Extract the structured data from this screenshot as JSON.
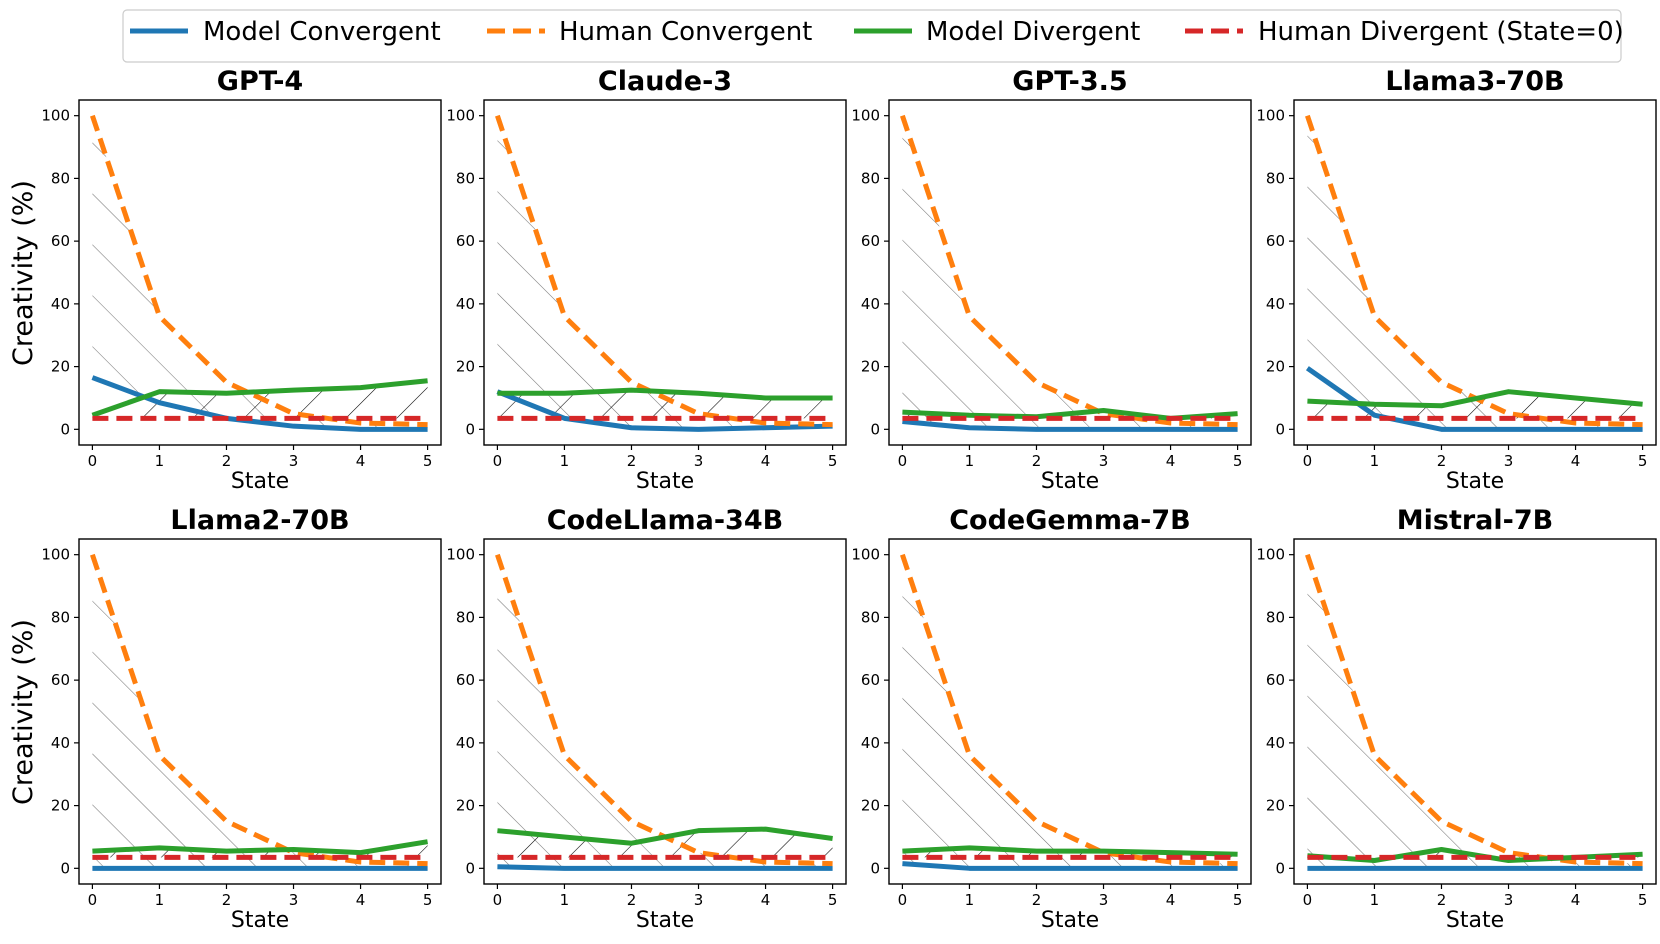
{
  "legend": {
    "entries": [
      {
        "label": "Model Convergent",
        "color": "#1f77b4",
        "dashed": false
      },
      {
        "label": "Human Convergent",
        "color": "#ff7f0e",
        "dashed": true
      },
      {
        "label": "Model Divergent",
        "color": "#2ca02c",
        "dashed": false
      },
      {
        "label": "Human Divergent (State=0)",
        "color": "#d62728",
        "dashed": true
      }
    ]
  },
  "ylabel": "Creativity (%)",
  "colors": {
    "model_convergent": "#1f77b4",
    "human_convergent": "#ff7f0e",
    "model_divergent": "#2ca02c",
    "human_divergent": "#d62728"
  },
  "chart_data": [
    {
      "type": "line",
      "title": "GPT-4",
      "xlabel": "State",
      "ylabel": "Creativity (%)",
      "x": [
        0,
        1,
        2,
        3,
        4,
        5
      ],
      "xlim": [
        -0.2,
        5.2
      ],
      "ylim": [
        -5,
        105
      ],
      "yticks": [
        0,
        20,
        40,
        60,
        80,
        100
      ],
      "grid": false,
      "legend": "top",
      "series": [
        {
          "name": "Model Convergent",
          "values": [
            16.5,
            8.5,
            3.5,
            1.0,
            0.0,
            0.0
          ]
        },
        {
          "name": "Human Convergent",
          "values": [
            100,
            36,
            15,
            5,
            2,
            1.5
          ]
        },
        {
          "name": "Model Divergent",
          "values": [
            4.5,
            12,
            11.5,
            12.5,
            13.3,
            15.5
          ]
        },
        {
          "name": "Human Divergent (State=0)",
          "values": [
            3.5,
            3.5,
            3.5,
            3.5,
            3.5,
            3.5
          ]
        }
      ]
    },
    {
      "type": "line",
      "title": "Claude-3",
      "xlabel": "State",
      "ylabel": "",
      "x": [
        0,
        1,
        2,
        3,
        4,
        5
      ],
      "xlim": [
        -0.2,
        5.2
      ],
      "ylim": [
        -5,
        105
      ],
      "yticks": [
        0,
        20,
        40,
        60,
        80,
        100
      ],
      "grid": false,
      "legend": "top",
      "series": [
        {
          "name": "Model Convergent",
          "values": [
            12,
            3.5,
            0.5,
            0,
            0.5,
            1
          ]
        },
        {
          "name": "Human Convergent",
          "values": [
            100,
            36,
            15,
            5,
            2,
            1.5
          ]
        },
        {
          "name": "Model Divergent",
          "values": [
            11.5,
            11.5,
            12.5,
            11.5,
            10,
            10
          ]
        },
        {
          "name": "Human Divergent (State=0)",
          "values": [
            3.5,
            3.5,
            3.5,
            3.5,
            3.5,
            3.5
          ]
        }
      ]
    },
    {
      "type": "line",
      "title": "GPT-3.5",
      "xlabel": "State",
      "ylabel": "",
      "x": [
        0,
        1,
        2,
        3,
        4,
        5
      ],
      "xlim": [
        -0.2,
        5.2
      ],
      "ylim": [
        -5,
        105
      ],
      "yticks": [
        0,
        20,
        40,
        60,
        80,
        100
      ],
      "grid": false,
      "legend": "top",
      "series": [
        {
          "name": "Model Convergent",
          "values": [
            2.5,
            0.5,
            0,
            0,
            0,
            0
          ]
        },
        {
          "name": "Human Convergent",
          "values": [
            100,
            36,
            15,
            5,
            2,
            1.5
          ]
        },
        {
          "name": "Model Divergent",
          "values": [
            5.5,
            4.5,
            4,
            6,
            3.5,
            5
          ]
        },
        {
          "name": "Human Divergent (State=0)",
          "values": [
            3.5,
            3.5,
            3.5,
            3.5,
            3.5,
            3.5
          ]
        }
      ]
    },
    {
      "type": "line",
      "title": "Llama3-70B",
      "xlabel": "State",
      "ylabel": "",
      "x": [
        0,
        1,
        2,
        3,
        4,
        5
      ],
      "xlim": [
        -0.2,
        5.2
      ],
      "ylim": [
        -5,
        105
      ],
      "yticks": [
        0,
        20,
        40,
        60,
        80,
        100
      ],
      "grid": false,
      "legend": "top",
      "series": [
        {
          "name": "Model Convergent",
          "values": [
            19.5,
            4.5,
            0,
            0,
            0,
            0
          ]
        },
        {
          "name": "Human Convergent",
          "values": [
            100,
            36,
            15,
            5,
            2,
            1.5
          ]
        },
        {
          "name": "Model Divergent",
          "values": [
            9,
            8,
            7.5,
            12,
            10,
            8
          ]
        },
        {
          "name": "Human Divergent (State=0)",
          "values": [
            3.5,
            3.5,
            3.5,
            3.5,
            3.5,
            3.5
          ]
        }
      ]
    },
    {
      "type": "line",
      "title": "Llama2-70B",
      "xlabel": "State",
      "ylabel": "Creativity (%)",
      "x": [
        0,
        1,
        2,
        3,
        4,
        5
      ],
      "xlim": [
        -0.2,
        5.2
      ],
      "ylim": [
        -5,
        105
      ],
      "yticks": [
        0,
        20,
        40,
        60,
        80,
        100
      ],
      "grid": false,
      "legend": "top",
      "series": [
        {
          "name": "Model Convergent",
          "values": [
            0,
            0,
            0,
            0,
            0,
            0
          ]
        },
        {
          "name": "Human Convergent",
          "values": [
            100,
            36,
            15,
            5,
            2,
            1.5
          ]
        },
        {
          "name": "Model Divergent",
          "values": [
            5.5,
            6.5,
            5.5,
            6,
            5,
            8.5
          ]
        },
        {
          "name": "Human Divergent (State=0)",
          "values": [
            3.5,
            3.5,
            3.5,
            3.5,
            3.5,
            3.5
          ]
        }
      ]
    },
    {
      "type": "line",
      "title": "CodeLlama-34B",
      "xlabel": "State",
      "ylabel": "",
      "x": [
        0,
        1,
        2,
        3,
        4,
        5
      ],
      "xlim": [
        -0.2,
        5.2
      ],
      "ylim": [
        -5,
        105
      ],
      "yticks": [
        0,
        20,
        40,
        60,
        80,
        100
      ],
      "grid": false,
      "legend": "top",
      "series": [
        {
          "name": "Model Convergent",
          "values": [
            0.5,
            0,
            0,
            0,
            0,
            0
          ]
        },
        {
          "name": "Human Convergent",
          "values": [
            100,
            36,
            15,
            5,
            2,
            1.5
          ]
        },
        {
          "name": "Model Divergent",
          "values": [
            12,
            10,
            8,
            12,
            12.5,
            9.5
          ]
        },
        {
          "name": "Human Divergent (State=0)",
          "values": [
            3.5,
            3.5,
            3.5,
            3.5,
            3.5,
            3.5
          ]
        }
      ]
    },
    {
      "type": "line",
      "title": "CodeGemma-7B",
      "xlabel": "State",
      "ylabel": "",
      "x": [
        0,
        1,
        2,
        3,
        4,
        5
      ],
      "xlim": [
        -0.2,
        5.2
      ],
      "ylim": [
        -5,
        105
      ],
      "yticks": [
        0,
        20,
        40,
        60,
        80,
        100
      ],
      "grid": false,
      "legend": "top",
      "series": [
        {
          "name": "Model Convergent",
          "values": [
            1.5,
            0,
            0,
            0,
            0,
            0
          ]
        },
        {
          "name": "Human Convergent",
          "values": [
            100,
            36,
            15,
            5,
            2,
            1.5
          ]
        },
        {
          "name": "Model Divergent",
          "values": [
            5.5,
            6.5,
            5.5,
            5.5,
            5,
            4.5
          ]
        },
        {
          "name": "Human Divergent (State=0)",
          "values": [
            3.5,
            3.5,
            3.5,
            3.5,
            3.5,
            3.5
          ]
        }
      ]
    },
    {
      "type": "line",
      "title": "Mistral-7B",
      "xlabel": "State",
      "ylabel": "",
      "x": [
        0,
        1,
        2,
        3,
        4,
        5
      ],
      "xlim": [
        -0.2,
        5.2
      ],
      "ylim": [
        -5,
        105
      ],
      "yticks": [
        0,
        20,
        40,
        60,
        80,
        100
      ],
      "grid": false,
      "legend": "top",
      "series": [
        {
          "name": "Model Convergent",
          "values": [
            0,
            0,
            0,
            0,
            0,
            0
          ]
        },
        {
          "name": "Human Convergent",
          "values": [
            100,
            36,
            15,
            5,
            2,
            1.5
          ]
        },
        {
          "name": "Model Divergent",
          "values": [
            4,
            2.5,
            6,
            2.5,
            3.5,
            4.5
          ]
        },
        {
          "name": "Human Divergent (State=0)",
          "values": [
            3.5,
            3.5,
            3.5,
            3.5,
            3.5,
            3.5
          ]
        }
      ]
    }
  ]
}
